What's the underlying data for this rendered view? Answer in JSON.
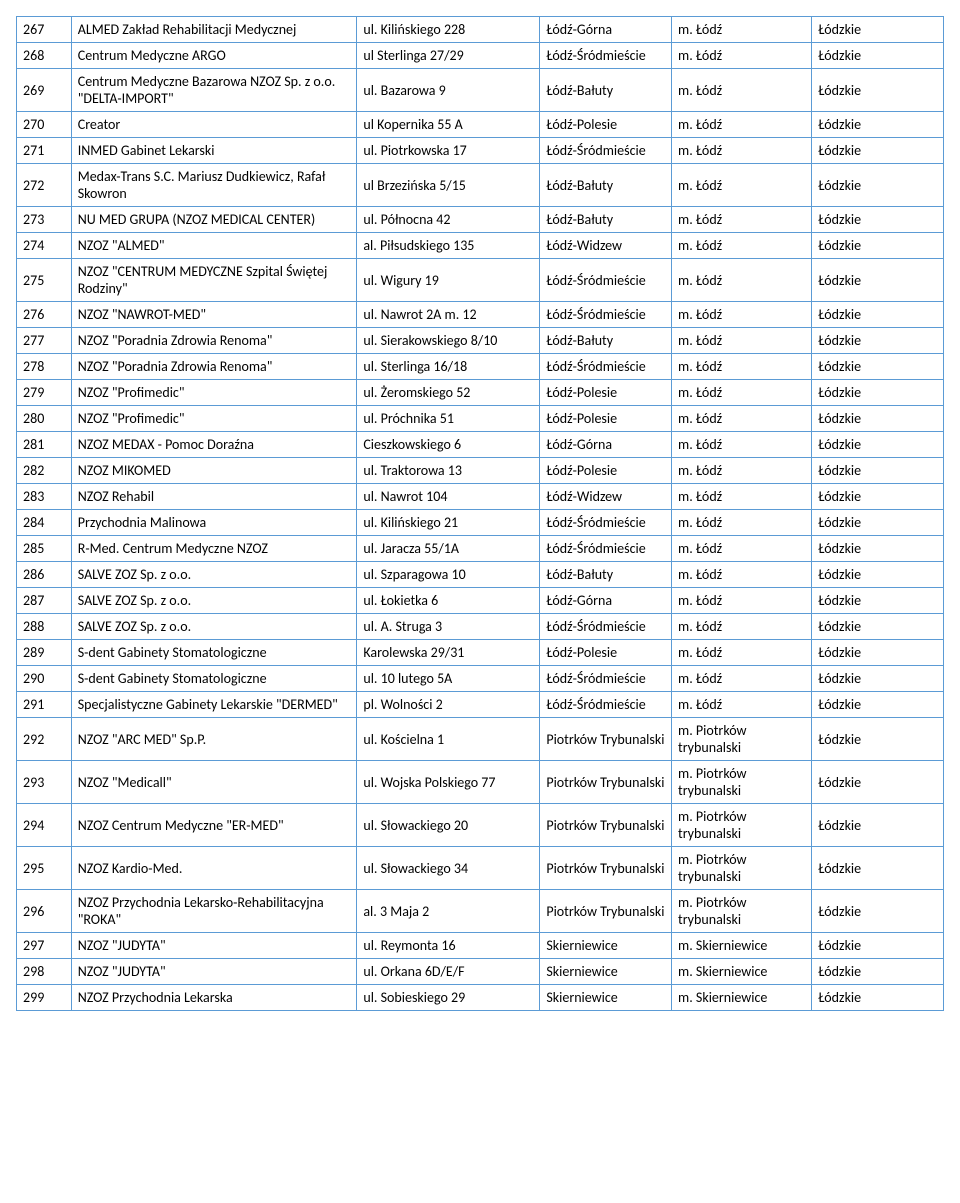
{
  "table": {
    "border_color": "#5b9bd5",
    "background_color": "#ffffff",
    "font_family": "Calibri",
    "font_size_pt": 11,
    "columns": [
      {
        "key": "num",
        "width_pct": 5
      },
      {
        "key": "name",
        "width_pct": 32
      },
      {
        "key": "addr",
        "width_pct": 20
      },
      {
        "key": "district",
        "width_pct": 14
      },
      {
        "key": "city",
        "width_pct": 15
      },
      {
        "key": "region",
        "width_pct": 14
      }
    ],
    "rows": [
      {
        "num": "267",
        "name": "ALMED Zakład Rehabilitacji Medycznej",
        "addr": "ul. Kilińskiego 228",
        "district": "Łódź-Górna",
        "city": "m. Łódź",
        "region": "Łódzkie"
      },
      {
        "num": "268",
        "name": "Centrum Medyczne ARGO",
        "addr": "ul Sterlinga 27/29",
        "district": "Łódź-Śródmieście",
        "city": "m. Łódź",
        "region": "Łódzkie"
      },
      {
        "num": "269",
        "name": "Centrum Medyczne Bazarowa NZOZ Sp. z o.o. \"DELTA-IMPORT\"",
        "addr": "ul. Bazarowa 9",
        "district": "Łódź-Bałuty",
        "city": "m. Łódź",
        "region": "Łódzkie"
      },
      {
        "num": "270",
        "name": "Creator",
        "addr": "ul Kopernika 55 A",
        "district": "Łódź-Polesie",
        "city": "m. Łódź",
        "region": "Łódzkie"
      },
      {
        "num": "271",
        "name": "INMED Gabinet Lekarski",
        "addr": "ul. Piotrkowska 17",
        "district": "Łódź-Śródmieście",
        "city": "m. Łódź",
        "region": "Łódzkie"
      },
      {
        "num": "272",
        "name": "Medax-Trans S.C. Mariusz Dudkiewicz, Rafał Skowron",
        "addr": "ul Brzezińska 5/15",
        "district": "Łódź-Bałuty",
        "city": "m. Łódź",
        "region": "Łódzkie"
      },
      {
        "num": "273",
        "name": "NU MED GRUPA (NZOZ MEDICAL CENTER)",
        "addr": "ul. Północna 42",
        "district": "Łódź-Bałuty",
        "city": "m. Łódź",
        "region": "Łódzkie"
      },
      {
        "num": "274",
        "name": "NZOZ \"ALMED\"",
        "addr": "al. Piłsudskiego 135",
        "district": "Łódź-Widzew",
        "city": "m. Łódź",
        "region": "Łódzkie"
      },
      {
        "num": "275",
        "name": "NZOZ \"CENTRUM MEDYCZNE Szpital Świętej Rodziny\"",
        "addr": "ul. Wigury 19",
        "district": "Łódź-Śródmieście",
        "city": "m. Łódź",
        "region": "Łódzkie"
      },
      {
        "num": "276",
        "name": "NZOZ \"NAWROT-MED\"",
        "addr": "ul. Nawrot 2A m. 12",
        "district": "Łódź-Śródmieście",
        "city": "m. Łódź",
        "region": "Łódzkie"
      },
      {
        "num": "277",
        "name": "NZOZ \"Poradnia Zdrowia Renoma\"",
        "addr": "ul. Sierakowskiego 8/10",
        "district": "Łódź-Bałuty",
        "city": "m. Łódź",
        "region": "Łódzkie"
      },
      {
        "num": "278",
        "name": "NZOZ \"Poradnia Zdrowia Renoma\"",
        "addr": "ul. Sterlinga 16/18",
        "district": "Łódź-Śródmieście",
        "city": "m. Łódź",
        "region": "Łódzkie"
      },
      {
        "num": "279",
        "name": "NZOZ \"Profimedic\"",
        "addr": "ul. Żeromskiego 52",
        "district": "Łódź-Polesie",
        "city": "m. Łódź",
        "region": "Łódzkie"
      },
      {
        "num": "280",
        "name": "NZOZ \"Profimedic\"",
        "addr": "ul. Próchnika 51",
        "district": "Łódź-Polesie",
        "city": "m. Łódź",
        "region": "Łódzkie"
      },
      {
        "num": "281",
        "name": "NZOZ MEDAX - Pomoc Doraźna",
        "addr": "Cieszkowskiego 6",
        "district": "Łódź-Górna",
        "city": "m. Łódź",
        "region": "Łódzkie"
      },
      {
        "num": "282",
        "name": "NZOZ MIKOMED",
        "addr": "ul. Traktorowa 13",
        "district": "Łódź-Polesie",
        "city": "m. Łódź",
        "region": "Łódzkie"
      },
      {
        "num": "283",
        "name": "NZOZ Rehabil",
        "addr": "ul. Nawrot 104",
        "district": "Łódź-Widzew",
        "city": "m. Łódź",
        "region": "Łódzkie"
      },
      {
        "num": "284",
        "name": "Przychodnia Malinowa",
        "addr": "ul. Kilińskiego 21",
        "district": "Łódź-Śródmieście",
        "city": "m. Łódź",
        "region": "Łódzkie"
      },
      {
        "num": "285",
        "name": "R-Med. Centrum Medyczne NZOZ",
        "addr": "ul. Jaracza 55/1A",
        "district": "Łódź-Śródmieście",
        "city": "m. Łódź",
        "region": "Łódzkie"
      },
      {
        "num": "286",
        "name": "SALVE ZOZ Sp. z o.o.",
        "addr": "ul. Szparagowa 10",
        "district": "Łódź-Bałuty",
        "city": "m. Łódź",
        "region": "Łódzkie"
      },
      {
        "num": "287",
        "name": "SALVE ZOZ Sp. z o.o.",
        "addr": "ul. Łokietka 6",
        "district": "Łódź-Górna",
        "city": "m. Łódź",
        "region": "Łódzkie"
      },
      {
        "num": "288",
        "name": "SALVE ZOZ Sp. z o.o.",
        "addr": "ul. A. Struga 3",
        "district": "Łódź-Śródmieście",
        "city": "m. Łódź",
        "region": "Łódzkie"
      },
      {
        "num": "289",
        "name": "S-dent Gabinety Stomatologiczne",
        "addr": "Karolewska 29/31",
        "district": "Łódź-Polesie",
        "city": "m. Łódź",
        "region": "Łódzkie"
      },
      {
        "num": "290",
        "name": "S-dent Gabinety Stomatologiczne",
        "addr": "ul. 10 lutego 5A",
        "district": "Łódź-Śródmieście",
        "city": "m. Łódź",
        "region": "Łódzkie"
      },
      {
        "num": "291",
        "name": "Specjalistyczne Gabinety Lekarskie \"DERMED\"",
        "addr": "pl. Wolności 2",
        "district": "Łódź-Śródmieście",
        "city": "m. Łódź",
        "region": "Łódzkie"
      },
      {
        "num": "292",
        "name": "NZOZ \"ARC MED\" Sp.P.",
        "addr": "ul. Kościelna 1",
        "district": "Piotrków Trybunalski",
        "city": "m. Piotrków trybunalski",
        "region": "Łódzkie"
      },
      {
        "num": "293",
        "name": "NZOZ \"Medicall\"",
        "addr": "ul. Wojska Polskiego 77",
        "district": "Piotrków Trybunalski",
        "city": "m. Piotrków trybunalski",
        "region": "Łódzkie"
      },
      {
        "num": "294",
        "name": "NZOZ Centrum Medyczne \"ER-MED\"",
        "addr": "ul. Słowackiego 20",
        "district": "Piotrków Trybunalski",
        "city": "m. Piotrków trybunalski",
        "region": "Łódzkie"
      },
      {
        "num": "295",
        "name": "NZOZ Kardio-Med.",
        "addr": "ul. Słowackiego 34",
        "district": "Piotrków Trybunalski",
        "city": "m. Piotrków trybunalski",
        "region": "Łódzkie"
      },
      {
        "num": "296",
        "name": "NZOZ Przychodnia Lekarsko-Rehabilitacyjna \"ROKA\"",
        "addr": "al. 3 Maja 2",
        "district": "Piotrków Trybunalski",
        "city": "m. Piotrków trybunalski",
        "region": "Łódzkie"
      },
      {
        "num": "297",
        "name": "NZOZ \"JUDYTA\"",
        "addr": "ul. Reymonta 16",
        "district": "Skierniewice",
        "city": "m. Skierniewice",
        "region": "Łódzkie"
      },
      {
        "num": "298",
        "name": "NZOZ \"JUDYTA\"",
        "addr": "ul. Orkana 6D/E/F",
        "district": "Skierniewice",
        "city": "m. Skierniewice",
        "region": "Łódzkie"
      },
      {
        "num": "299",
        "name": "NZOZ Przychodnia Lekarska",
        "addr": "ul. Sobieskiego 29",
        "district": "Skierniewice",
        "city": "m. Skierniewice",
        "region": "Łódzkie"
      }
    ]
  }
}
